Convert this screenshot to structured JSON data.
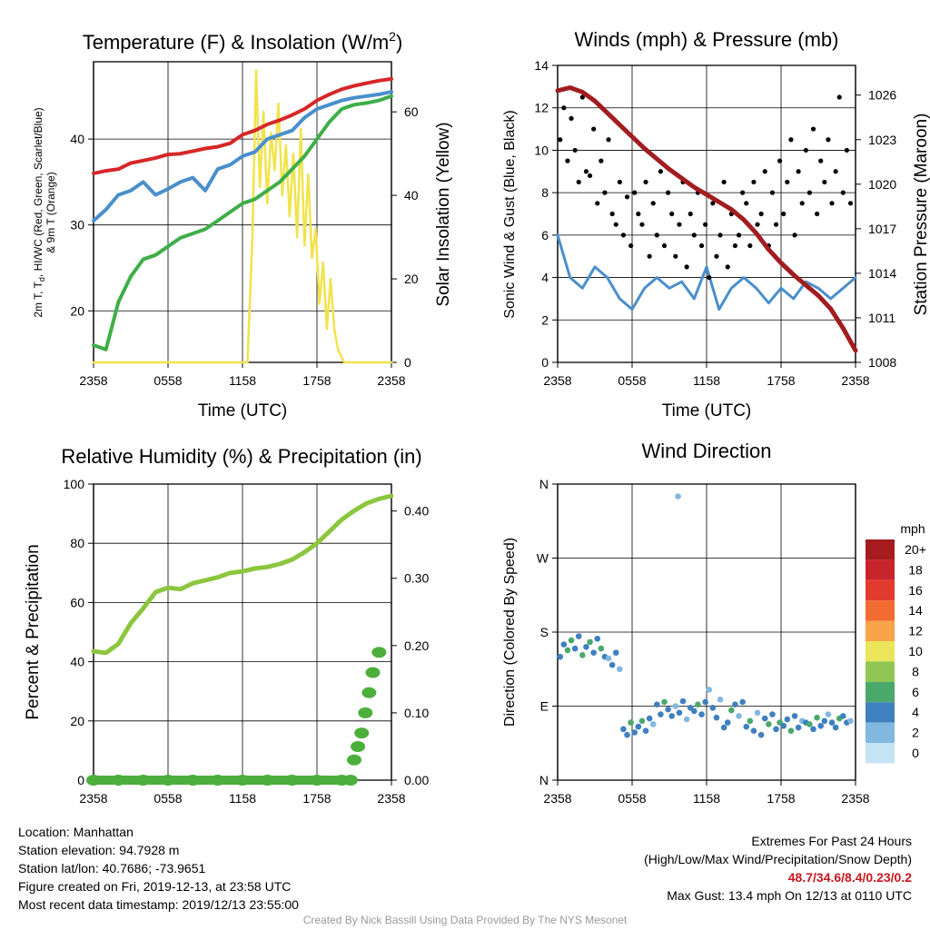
{
  "chart_data": [
    {
      "type": "line",
      "title": "Temperature (F) & Insolation (W/m",
      "title_sup": "2",
      "title_end": ")",
      "xlabel": "Time (UTC)",
      "ylabel_lines": [
        "2m T, T",
        "d",
        ", HI/WC (Red, Green, Scarlet/Blue)",
        "& 9m T (Orange)"
      ],
      "ylabel2": "Solar Insolation (Yellow)",
      "xticks": [
        "2358",
        "0558",
        "1158",
        "1758",
        "2358"
      ],
      "ylim": [
        14,
        49
      ],
      "yticks": [
        20,
        30,
        40
      ],
      "ylim2": [
        0,
        72
      ],
      "yticks2": [
        0,
        20,
        40,
        60
      ],
      "series": [
        {
          "key": "temperature",
          "color": "#d62728",
          "x": [
            0,
            1,
            2,
            3,
            4,
            5,
            6,
            7,
            8,
            9,
            10,
            11,
            12,
            13,
            14,
            15,
            16,
            17,
            18,
            19,
            20,
            21,
            22,
            23,
            24
          ],
          "y": [
            36.0,
            36.3,
            36.5,
            37.2,
            37.5,
            37.8,
            38.2,
            38.3,
            38.6,
            38.9,
            39.1,
            39.5,
            40.5,
            41.0,
            41.7,
            42.2,
            42.8,
            43.5,
            44.5,
            45.2,
            45.8,
            46.2,
            46.5,
            46.8,
            47.0
          ]
        },
        {
          "key": "windchill",
          "color": "#4a8fcc",
          "x": [
            0,
            1,
            2,
            3,
            4,
            5,
            6,
            7,
            8,
            9,
            10,
            11,
            12,
            13,
            14,
            15,
            16,
            17,
            18,
            19,
            20,
            21,
            22,
            23,
            24
          ],
          "y": [
            30.5,
            31.8,
            33.5,
            34.0,
            35.0,
            33.5,
            34.2,
            35.0,
            35.5,
            34.0,
            36.5,
            37.0,
            38.0,
            38.5,
            40.0,
            40.5,
            41.0,
            42.5,
            43.5,
            44.0,
            44.5,
            44.8,
            45.0,
            45.2,
            45.5
          ]
        },
        {
          "key": "dewpoint",
          "color": "#3fae49",
          "x": [
            0,
            1,
            2,
            3,
            4,
            5,
            6,
            7,
            8,
            9,
            10,
            11,
            12,
            13,
            14,
            15,
            16,
            17,
            18,
            19,
            20,
            21,
            22,
            23,
            24
          ],
          "y": [
            16.0,
            15.5,
            21.0,
            24.0,
            26.0,
            26.5,
            27.5,
            28.5,
            29.0,
            29.5,
            30.5,
            31.5,
            32.5,
            33.0,
            34.0,
            35.0,
            36.5,
            38.0,
            40.0,
            42.0,
            43.5,
            44.0,
            44.2,
            44.5,
            45.0
          ]
        },
        {
          "key": "insolation",
          "color": "#f2e34c",
          "axis": "right",
          "x": [
            0,
            12.4,
            12.8,
            13.1,
            13.4,
            13.7,
            14.0,
            14.3,
            14.6,
            14.9,
            15.2,
            15.5,
            15.8,
            16.1,
            16.4,
            16.7,
            17.0,
            17.3,
            17.6,
            17.9,
            18.2,
            18.5,
            18.8,
            19.1,
            19.4,
            19.7,
            20.2,
            20.6,
            24
          ],
          "y": [
            0,
            0,
            30,
            70,
            42,
            60,
            38,
            55,
            46,
            62,
            40,
            52,
            35,
            50,
            30,
            56,
            28,
            45,
            25,
            32,
            14,
            24,
            8,
            20,
            8,
            3,
            0,
            0,
            0
          ]
        }
      ]
    },
    {
      "type": "scatter",
      "title": "Winds (mph) & Pressure (mb)",
      "xlabel": "Time (UTC)",
      "ylabel": "Sonic Wind & Gust (Blue, Black)",
      "ylabel2": "Station Pressure (Maroon)",
      "xticks": [
        "2358",
        "0558",
        "1158",
        "1758",
        "2358"
      ],
      "ylim": [
        0,
        14
      ],
      "yticks": [
        0,
        2,
        4,
        6,
        8,
        10,
        12,
        14
      ],
      "ylim2": [
        1008,
        1028
      ],
      "yticks2": [
        1008,
        1011,
        1014,
        1017,
        1020,
        1023,
        1026
      ],
      "series": [
        {
          "key": "wind",
          "color": "#4a8fcc",
          "x": [
            0,
            1,
            2,
            3,
            4,
            5,
            6,
            7,
            8,
            9,
            10,
            11,
            12,
            13,
            14,
            15,
            16,
            17,
            18,
            19,
            20,
            21,
            22,
            23,
            24
          ],
          "y": [
            6.0,
            4.0,
            3.5,
            4.5,
            4.0,
            3.0,
            2.5,
            3.5,
            4.0,
            3.5,
            3.8,
            3.0,
            4.5,
            2.5,
            3.5,
            4.0,
            3.5,
            2.8,
            3.5,
            3.0,
            3.8,
            3.5,
            3.0,
            3.5,
            4.0
          ]
        },
        {
          "key": "gust",
          "color": "#000000",
          "x": [
            0.2,
            0.5,
            0.8,
            1.1,
            1.4,
            1.7,
            2.0,
            2.3,
            2.6,
            2.9,
            3.2,
            3.5,
            3.8,
            4.1,
            4.4,
            4.7,
            5.0,
            5.3,
            5.6,
            5.9,
            6.2,
            6.5,
            6.8,
            7.1,
            7.4,
            7.7,
            8.0,
            8.3,
            8.6,
            8.9,
            9.2,
            9.5,
            9.8,
            10.1,
            10.4,
            10.7,
            11.0,
            11.3,
            11.6,
            11.9,
            12.2,
            12.5,
            12.8,
            13.1,
            13.4,
            13.7,
            14.0,
            14.3,
            14.6,
            14.9,
            15.2,
            15.5,
            15.8,
            16.1,
            16.4,
            16.7,
            17.0,
            17.3,
            17.6,
            17.9,
            18.2,
            18.5,
            18.8,
            19.1,
            19.4,
            19.7,
            20.0,
            20.3,
            20.6,
            20.9,
            21.2,
            21.5,
            21.8,
            22.1,
            22.4,
            22.7,
            23.0,
            23.3,
            23.6
          ],
          "y": [
            10.5,
            12.0,
            9.5,
            11.5,
            10.0,
            8.5,
            12.5,
            9.0,
            8.8,
            11.0,
            7.5,
            9.5,
            8.0,
            10.5,
            7.0,
            6.5,
            8.5,
            6.0,
            7.8,
            5.5,
            8.0,
            7.0,
            6.5,
            8.5,
            5.0,
            7.5,
            6.0,
            9.0,
            5.5,
            8.0,
            7.0,
            5.0,
            6.5,
            8.5,
            4.5,
            7.0,
            6.0,
            8.0,
            5.5,
            6.5,
            4.0,
            7.5,
            5.0,
            6.0,
            8.5,
            4.5,
            7.0,
            5.5,
            6.0,
            8.0,
            7.5,
            5.5,
            8.5,
            6.5,
            7.0,
            9.0,
            5.5,
            8.0,
            6.5,
            9.5,
            7.0,
            8.5,
            10.5,
            6.0,
            9.0,
            7.5,
            10.0,
            8.0,
            11.0,
            7.0,
            9.5,
            8.5,
            10.5,
            7.5,
            9.0,
            12.5,
            8.0,
            10.0,
            7.5
          ]
        },
        {
          "key": "pressure",
          "color": "#a11d20",
          "axis": "right",
          "x": [
            0,
            1,
            2,
            3,
            4,
            5,
            6,
            7,
            8,
            9,
            10,
            11,
            12,
            13,
            14,
            15,
            16,
            17,
            18,
            19,
            20,
            21,
            22,
            23,
            24
          ],
          "y": [
            1026.3,
            1026.5,
            1026.2,
            1025.6,
            1024.8,
            1024.0,
            1023.2,
            1022.4,
            1021.7,
            1021.0,
            1020.4,
            1019.8,
            1019.3,
            1018.8,
            1018.3,
            1017.6,
            1016.7,
            1015.6,
            1014.7,
            1013.9,
            1013.2,
            1012.5,
            1011.6,
            1010.3,
            1008.8
          ]
        }
      ]
    },
    {
      "type": "line",
      "title": "Relative Humidity (%) & Precipitation (in)",
      "xlabel": "",
      "ylabel": "Percent & Precipitation",
      "xticks": [
        "2358",
        "0558",
        "1158",
        "1758",
        "2358"
      ],
      "ylim": [
        0,
        100
      ],
      "yticks": [
        0,
        20,
        40,
        60,
        80,
        100
      ],
      "ylim2": [
        0,
        0.44
      ],
      "yticks2": [
        "0.00",
        "0.10",
        "0.20",
        "0.30",
        "0.40"
      ],
      "series": [
        {
          "key": "humidity",
          "color": "#8cc63f",
          "x": [
            0,
            1,
            2,
            3,
            4,
            5,
            6,
            7,
            8,
            9,
            10,
            11,
            12,
            13,
            14,
            15,
            16,
            17,
            18,
            19,
            20,
            21,
            22,
            23,
            24
          ],
          "y": [
            43.5,
            43.0,
            46.0,
            53.0,
            58.0,
            63.5,
            65.0,
            64.5,
            66.5,
            67.5,
            68.5,
            70.0,
            70.5,
            71.5,
            72.0,
            73.0,
            74.5,
            77.0,
            80.0,
            84.0,
            88.0,
            91.0,
            93.5,
            95.0,
            96.0
          ]
        },
        {
          "key": "precipitation",
          "color": "#4caf3c",
          "axis": "right",
          "x": [
            0,
            2,
            4,
            6,
            8,
            10,
            12,
            14,
            16,
            18,
            20,
            20.7,
            21.0,
            21.3,
            21.6,
            21.9,
            22.2,
            22.5,
            23.0
          ],
          "y": [
            0,
            0,
            0,
            0,
            0,
            0,
            0,
            0,
            0,
            0,
            0,
            0,
            0.03,
            0.05,
            0.07,
            0.1,
            0.13,
            0.16,
            0.19
          ]
        }
      ]
    },
    {
      "type": "scatter",
      "title": "Wind Direction",
      "xlabel": "",
      "ylabel": "Direction (Colored By Speed)",
      "xticks": [
        "2358",
        "0558",
        "1158",
        "1758",
        "2358"
      ],
      "ylim": [
        0,
        360
      ],
      "yticks": [
        "N",
        "E",
        "S",
        "W",
        "N"
      ],
      "colorbar_title": "mph",
      "colorbar_labels": [
        "20+",
        "18",
        "16",
        "14",
        "12",
        "10",
        "8",
        "6",
        "4",
        "2",
        "0"
      ],
      "colorbar_colors": [
        "#a51b1e",
        "#c8242b",
        "#e23b2e",
        "#f26b30",
        "#f9a34a",
        "#ece45a",
        "#8fc653",
        "#4aa86b",
        "#3f80bf",
        "#82b8e0",
        "#c4e4f5"
      ],
      "x": [
        0.2,
        0.5,
        0.8,
        1.1,
        1.4,
        1.7,
        2.0,
        2.3,
        2.6,
        2.9,
        3.2,
        3.5,
        3.8,
        4.1,
        4.4,
        4.7,
        5.0,
        5.3,
        5.6,
        5.9,
        6.2,
        6.5,
        6.8,
        7.1,
        7.4,
        7.7,
        8.0,
        8.3,
        8.6,
        8.9,
        9.2,
        9.5,
        9.8,
        10.1,
        10.4,
        10.7,
        11.0,
        11.3,
        11.6,
        11.9,
        12.2,
        12.5,
        12.8,
        13.1,
        13.4,
        13.7,
        14.0,
        14.3,
        14.6,
        14.9,
        15.2,
        15.5,
        15.8,
        16.1,
        16.4,
        16.7,
        17.0,
        17.3,
        17.6,
        17.9,
        18.2,
        18.5,
        18.8,
        19.1,
        19.4,
        19.7,
        20.0,
        20.3,
        20.6,
        20.9,
        21.2,
        21.5,
        21.8,
        22.1,
        22.4,
        22.7,
        23.0,
        23.3,
        23.6,
        9.7
      ],
      "y": [
        150,
        165,
        158,
        170,
        160,
        175,
        152,
        162,
        168,
        155,
        172,
        160,
        150,
        148,
        140,
        155,
        135,
        62,
        55,
        70,
        58,
        65,
        72,
        60,
        75,
        68,
        92,
        80,
        95,
        86,
        78,
        90,
        82,
        96,
        74,
        88,
        84,
        92,
        80,
        95,
        110,
        88,
        76,
        98,
        64,
        70,
        85,
        92,
        78,
        95,
        65,
        72,
        60,
        82,
        55,
        75,
        68,
        80,
        62,
        70,
        66,
        74,
        60,
        78,
        64,
        72,
        70,
        68,
        62,
        76,
        66,
        72,
        80,
        70,
        64,
        75,
        78,
        70,
        72,
        345
      ],
      "speed": [
        3,
        4,
        5,
        6,
        4,
        3,
        5,
        4,
        6,
        3,
        4,
        5,
        3,
        2,
        4,
        3,
        2,
        4,
        3,
        5,
        4,
        3,
        6,
        4,
        3,
        2,
        4,
        3,
        5,
        4,
        3,
        2,
        4,
        3,
        1,
        4,
        3,
        5,
        4,
        3,
        2,
        4,
        3,
        2,
        4,
        3,
        5,
        4,
        2,
        3,
        4,
        5,
        3,
        2,
        4,
        3,
        5,
        4,
        3,
        6,
        4,
        3,
        5,
        4,
        3,
        2,
        4,
        5,
        3,
        6,
        4,
        3,
        2,
        4,
        3,
        5,
        4,
        3,
        2,
        1
      ]
    }
  ],
  "info": {
    "location": "Location: Manhattan",
    "elevation": "Station elevation: 94.7928 m",
    "latlon": "Station lat/lon: 40.7686; -73.9651",
    "created": "Figure created on Fri, 2019-12-13, at 23:58 UTC",
    "recent": "Most recent data timestamp: 2019/12/13 23:55:00"
  },
  "extremes": {
    "title": "Extremes For Past 24 Hours",
    "subtitle": "(High/Low/Max Wind/Precipitation/Snow Depth)",
    "values": "48.7/34.6/8.4/0.23/0.2",
    "gust": "Max Gust: 13.4 mph On 12/13 at 0110 UTC"
  },
  "credit": "Created By Nick Bassill Using Data Provided By The NYS Mesonet"
}
